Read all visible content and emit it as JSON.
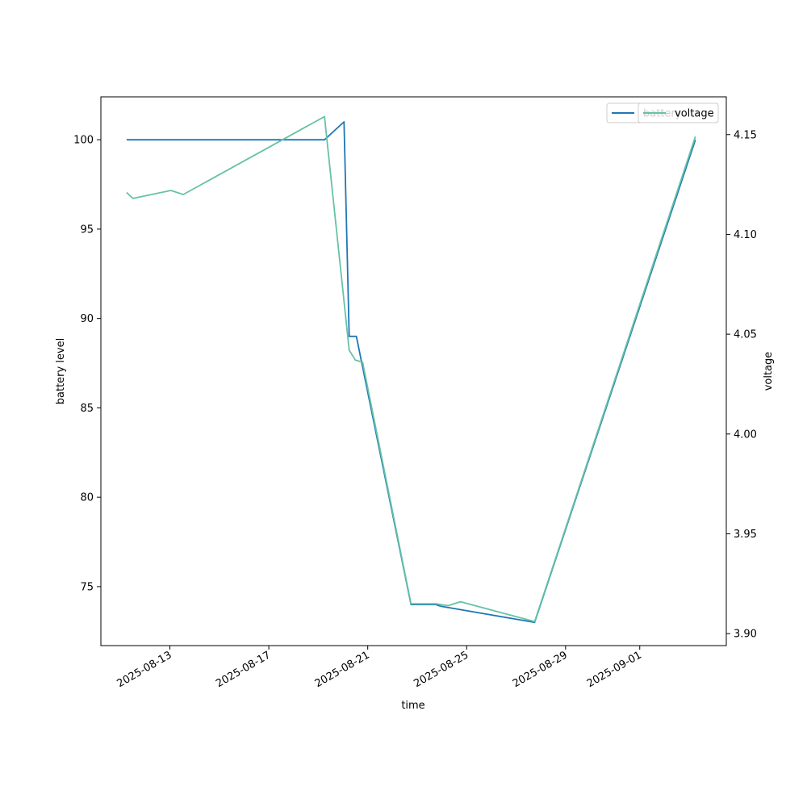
{
  "chart_data": {
    "type": "line",
    "xlabel": "time",
    "ylabel_left": "battery level",
    "ylabel_right": "voltage",
    "x_tick_labels": [
      "2025-08-13",
      "2025-08-17",
      "2025-08-21",
      "2025-08-25",
      "2025-08-29",
      "2025-09-01"
    ],
    "y_left_ticks": [
      75,
      80,
      85,
      90,
      95,
      100
    ],
    "y_right_ticks": [
      "3.90",
      "3.95",
      "4.00",
      "4.05",
      "4.10",
      "4.15"
    ],
    "xlim": [
      "2025-08-10 05:00",
      "2025-09-04 12:00"
    ],
    "ylim_left": [
      71.7,
      102.4
    ],
    "ylim_right": [
      3.894,
      4.1689
    ],
    "legend_placement": "top-right",
    "colors": {
      "battery": "#1f77b4",
      "voltage": "#66c2a5"
    },
    "series": [
      {
        "name": "battery",
        "axis": "left",
        "points": [
          [
            "2025-08-11 06:00",
            100
          ],
          [
            "2025-08-19 06:00",
            100
          ],
          [
            "2025-08-20 01:00",
            101
          ],
          [
            "2025-08-20 06:00",
            89
          ],
          [
            "2025-08-20 13:00",
            89
          ],
          [
            "2025-08-22 18:00",
            74
          ],
          [
            "2025-08-23 18:00",
            74
          ],
          [
            "2025-08-23 23:00",
            73.9
          ],
          [
            "2025-08-27 18:00",
            73
          ],
          [
            "2025-09-03 06:00",
            100
          ]
        ]
      },
      {
        "name": "voltage",
        "axis": "right",
        "points": [
          [
            "2025-08-11 06:00",
            4.121
          ],
          [
            "2025-08-11 12:00",
            4.118
          ],
          [
            "2025-08-13 01:00",
            4.122
          ],
          [
            "2025-08-13 13:00",
            4.12
          ],
          [
            "2025-08-19 06:00",
            4.159
          ],
          [
            "2025-08-20 06:00",
            4.042
          ],
          [
            "2025-08-20 12:00",
            4.037
          ],
          [
            "2025-08-20 19:00",
            4.036
          ],
          [
            "2025-08-22 18:00",
            3.915
          ],
          [
            "2025-08-23 18:00",
            3.915
          ],
          [
            "2025-08-24 06:00",
            3.914
          ],
          [
            "2025-08-24 18:00",
            3.916
          ],
          [
            "2025-08-27 18:00",
            3.906
          ],
          [
            "2025-09-03 06:00",
            4.149
          ]
        ]
      }
    ]
  },
  "legend": {
    "battery_entry": "battery",
    "voltage_entry": "voltage"
  }
}
